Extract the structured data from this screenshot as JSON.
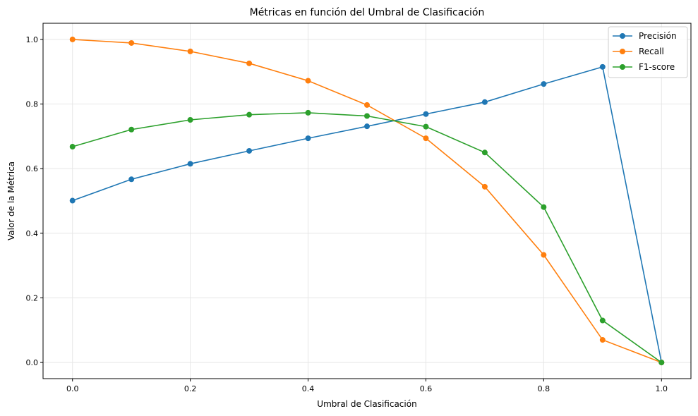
{
  "chart_data": {
    "type": "line",
    "title": "Métricas en función del Umbral de Clasificación",
    "xlabel": "Umbral de Clasificación",
    "ylabel": "Valor de la Métrica",
    "xlim": [
      -0.05,
      1.05
    ],
    "ylim": [
      -0.05,
      1.05
    ],
    "xticks": [
      "0.0",
      "0.2",
      "0.4",
      "0.6",
      "0.8",
      "1.0"
    ],
    "yticks": [
      "0.0",
      "0.2",
      "0.4",
      "0.6",
      "0.8",
      "1.0"
    ],
    "grid": true,
    "legend_position": "top-right",
    "x": [
      0.0,
      0.1,
      0.2,
      0.3,
      0.4,
      0.5,
      0.6,
      0.7,
      0.8,
      0.9,
      1.0
    ],
    "series": [
      {
        "name": "Precisión",
        "color": "#1f77b4",
        "values": [
          0.501,
          0.567,
          0.615,
          0.655,
          0.694,
          0.731,
          0.769,
          0.806,
          0.862,
          0.915,
          0.0
        ]
      },
      {
        "name": "Recall",
        "color": "#ff7f0e",
        "values": [
          1.0,
          0.989,
          0.963,
          0.926,
          0.872,
          0.797,
          0.694,
          0.544,
          0.333,
          0.07,
          0.0
        ]
      },
      {
        "name": "F1-score",
        "color": "#2ca02c",
        "values": [
          0.668,
          0.721,
          0.751,
          0.767,
          0.773,
          0.763,
          0.73,
          0.65,
          0.481,
          0.13,
          0.0
        ]
      }
    ]
  }
}
